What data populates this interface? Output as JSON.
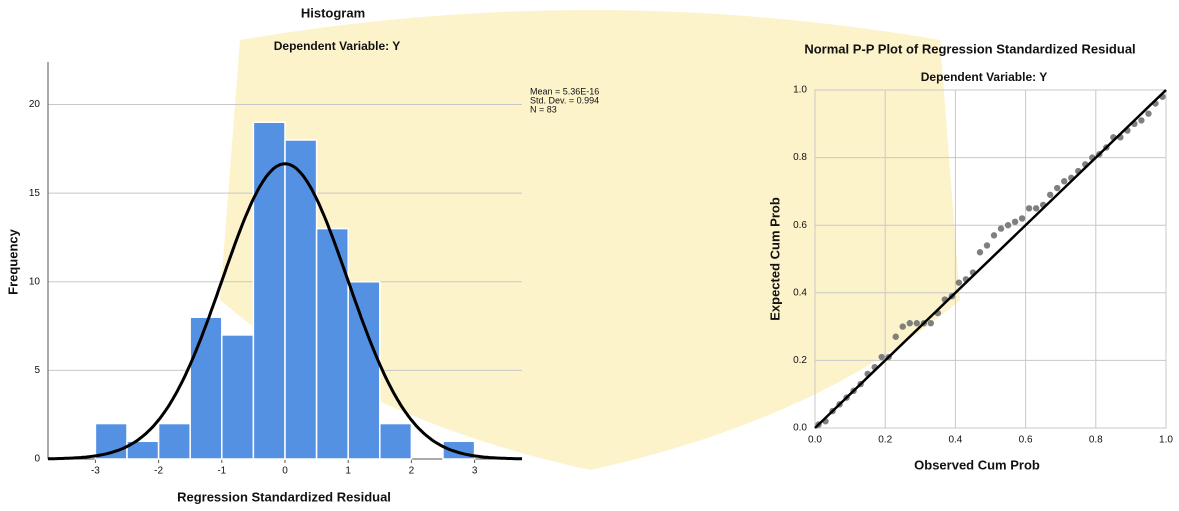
{
  "chart_data": [
    {
      "type": "histogram",
      "title": "Histogram",
      "subtitle": "Dependent Variable: Y",
      "x_label": "Regression Standardized Residual",
      "y_label": "Frequency",
      "bins": [
        -3,
        -2.5,
        -2,
        -1.5,
        -1,
        -0.5,
        0,
        0.5,
        1,
        1.5,
        2,
        2.5,
        3
      ],
      "values": [
        2,
        1,
        2,
        8,
        7,
        19,
        18,
        13,
        10,
        2,
        0,
        1
      ],
      "color": "#5591e3",
      "stats": [
        {
          "value": 5.36e-16,
          "label": "Mean = 5.36E-16"
        },
        {
          "value": 0.994,
          "label": "Std. Dev. = 0.994"
        },
        {
          "value": 83,
          "label": "N = 83"
        }
      ],
      "xlim": [
        -3.75,
        3.75
      ],
      "xticks": [
        -3,
        -2,
        -1,
        0,
        1,
        2,
        3
      ],
      "ylim": [
        0,
        22.4
      ],
      "yticks": [
        0,
        5,
        10,
        15,
        20
      ],
      "grid": true
    },
    {
      "type": "scatter",
      "title": "Normal P-P Plot of Regression Standardized Residual",
      "subtitle": "Dependent Variable: Y",
      "x_label": "Observed Cum Prob",
      "y_label": "Expected Cum Prob",
      "x": [
        0.01,
        0.03,
        0.05,
        0.07,
        0.09,
        0.11,
        0.13,
        0.15,
        0.17,
        0.19,
        0.21,
        0.23,
        0.25,
        0.27,
        0.29,
        0.31,
        0.33,
        0.35,
        0.37,
        0.39,
        0.41,
        0.43,
        0.45,
        0.47,
        0.49,
        0.51,
        0.53,
        0.55,
        0.57,
        0.59,
        0.61,
        0.63,
        0.65,
        0.67,
        0.69,
        0.71,
        0.73,
        0.75,
        0.77,
        0.79,
        0.81,
        0.83,
        0.85,
        0.87,
        0.89,
        0.91,
        0.93,
        0.95,
        0.97,
        0.99
      ],
      "values": [
        0.01,
        0.02,
        0.05,
        0.07,
        0.09,
        0.11,
        0.13,
        0.16,
        0.18,
        0.21,
        0.21,
        0.27,
        0.3,
        0.31,
        0.31,
        0.31,
        0.31,
        0.34,
        0.38,
        0.39,
        0.43,
        0.44,
        0.46,
        0.52,
        0.54,
        0.57,
        0.59,
        0.6,
        0.61,
        0.62,
        0.65,
        0.65,
        0.66,
        0.69,
        0.71,
        0.73,
        0.74,
        0.76,
        0.78,
        0.8,
        0.81,
        0.83,
        0.86,
        0.86,
        0.88,
        0.9,
        0.91,
        0.93,
        0.96,
        0.98
      ],
      "color": "#7f7f7f",
      "xlim": [
        0,
        1
      ],
      "xticks": [
        {
          "value": 0,
          "label": "0.0"
        },
        0.2,
        0.4,
        0.6,
        0.8,
        {
          "value": 1,
          "label": "1.0"
        }
      ],
      "ylim": [
        0,
        1
      ],
      "yticks": [
        {
          "value": 0,
          "label": "0.0"
        },
        0.2,
        0.4,
        0.6,
        0.8,
        {
          "value": 1,
          "label": "1.0"
        }
      ],
      "grid": true
    }
  ]
}
